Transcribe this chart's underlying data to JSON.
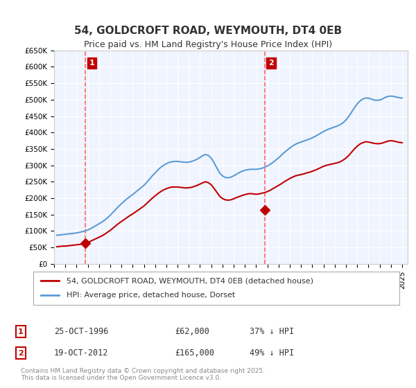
{
  "title": "54, GOLDCROFT ROAD, WEYMOUTH, DT4 0EB",
  "subtitle": "Price paid vs. HM Land Registry's House Price Index (HPI)",
  "legend_line1": "54, GOLDCROFT ROAD, WEYMOUTH, DT4 0EB (detached house)",
  "legend_line2": "HPI: Average price, detached house, Dorset",
  "purchase1_date": "25-OCT-1996",
  "purchase1_price": 62000,
  "purchase1_label": "37% ↓ HPI",
  "purchase2_date": "19-OCT-2012",
  "purchase2_price": 165000,
  "purchase2_label": "49% ↓ HPI",
  "footer": "Contains HM Land Registry data © Crown copyright and database right 2025.\nThis data is licensed under the Open Government Licence v3.0.",
  "hpi_color": "#5b9bd5",
  "price_color": "#c00000",
  "marker_color": "#c00000",
  "vline_color": "#ff6666",
  "background_color": "#f0f4ff",
  "grid_color": "#ffffff",
  "ylim": [
    0,
    650000
  ],
  "yticks": [
    0,
    50000,
    100000,
    150000,
    200000,
    250000,
    300000,
    350000,
    400000,
    450000,
    500000,
    550000,
    600000,
    650000
  ],
  "xlim_start": 1994.0,
  "xlim_end": 2025.5,
  "xticks": [
    1994,
    1995,
    1996,
    1997,
    1998,
    1999,
    2000,
    2001,
    2002,
    2003,
    2004,
    2005,
    2006,
    2007,
    2008,
    2009,
    2010,
    2011,
    2012,
    2013,
    2014,
    2015,
    2016,
    2017,
    2018,
    2019,
    2020,
    2021,
    2022,
    2023,
    2024,
    2025
  ],
  "purchase1_x": 1996.81,
  "purchase2_x": 2012.8,
  "hpi_x": [
    1994.25,
    1994.5,
    1994.75,
    1995.0,
    1995.25,
    1995.5,
    1995.75,
    1996.0,
    1996.25,
    1996.5,
    1996.75,
    1997.0,
    1997.25,
    1997.5,
    1997.75,
    1998.0,
    1998.25,
    1998.5,
    1998.75,
    1999.0,
    1999.25,
    1999.5,
    1999.75,
    2000.0,
    2000.25,
    2000.5,
    2000.75,
    2001.0,
    2001.25,
    2001.5,
    2001.75,
    2002.0,
    2002.25,
    2002.5,
    2002.75,
    2003.0,
    2003.25,
    2003.5,
    2003.75,
    2004.0,
    2004.25,
    2004.5,
    2004.75,
    2005.0,
    2005.25,
    2005.5,
    2005.75,
    2006.0,
    2006.25,
    2006.5,
    2006.75,
    2007.0,
    2007.25,
    2007.5,
    2007.75,
    2008.0,
    2008.25,
    2008.5,
    2008.75,
    2009.0,
    2009.25,
    2009.5,
    2009.75,
    2010.0,
    2010.25,
    2010.5,
    2010.75,
    2011.0,
    2011.25,
    2011.5,
    2011.75,
    2012.0,
    2012.25,
    2012.5,
    2012.75,
    2013.0,
    2013.25,
    2013.5,
    2013.75,
    2014.0,
    2014.25,
    2014.5,
    2014.75,
    2015.0,
    2015.25,
    2015.5,
    2015.75,
    2016.0,
    2016.25,
    2016.5,
    2016.75,
    2017.0,
    2017.25,
    2017.5,
    2017.75,
    2018.0,
    2018.25,
    2018.5,
    2018.75,
    2019.0,
    2019.25,
    2019.5,
    2019.75,
    2020.0,
    2020.25,
    2020.5,
    2020.75,
    2021.0,
    2021.25,
    2021.5,
    2021.75,
    2022.0,
    2022.25,
    2022.5,
    2022.75,
    2023.0,
    2023.25,
    2023.5,
    2023.75,
    2024.0,
    2024.25,
    2024.5,
    2024.75,
    2025.0
  ],
  "hpi_y": [
    87000,
    88000,
    89000,
    90000,
    91000,
    92000,
    93000,
    94000,
    96000,
    98000,
    100000,
    103000,
    107000,
    112000,
    117000,
    122000,
    127000,
    133000,
    140000,
    148000,
    157000,
    166000,
    175000,
    183000,
    191000,
    198000,
    205000,
    211000,
    218000,
    225000,
    232000,
    239000,
    248000,
    258000,
    268000,
    277000,
    286000,
    294000,
    300000,
    305000,
    309000,
    311000,
    312000,
    312000,
    311000,
    310000,
    309000,
    310000,
    312000,
    315000,
    319000,
    324000,
    330000,
    333000,
    330000,
    322000,
    308000,
    292000,
    277000,
    268000,
    263000,
    262000,
    264000,
    268000,
    273000,
    278000,
    282000,
    285000,
    287000,
    288000,
    288000,
    288000,
    289000,
    291000,
    294000,
    298000,
    303000,
    309000,
    316000,
    323000,
    331000,
    339000,
    346000,
    353000,
    359000,
    364000,
    368000,
    371000,
    374000,
    377000,
    380000,
    384000,
    388000,
    393000,
    398000,
    403000,
    407000,
    411000,
    414000,
    417000,
    420000,
    424000,
    430000,
    438000,
    449000,
    462000,
    475000,
    487000,
    496000,
    502000,
    505000,
    505000,
    502000,
    499000,
    498000,
    499000,
    502000,
    507000,
    510000,
    511000,
    510000,
    508000,
    506000,
    505000
  ],
  "price_x": [
    1994.25,
    1994.5,
    1994.75,
    1995.0,
    1995.25,
    1995.5,
    1995.75,
    1996.0,
    1996.25,
    1996.5,
    1996.75,
    1997.0,
    1997.25,
    1997.5,
    1997.75,
    1998.0,
    1998.25,
    1998.5,
    1998.75,
    1999.0,
    1999.25,
    1999.5,
    1999.75,
    2000.0,
    2000.25,
    2000.5,
    2000.75,
    2001.0,
    2001.25,
    2001.5,
    2001.75,
    2002.0,
    2002.25,
    2002.5,
    2002.75,
    2003.0,
    2003.25,
    2003.5,
    2003.75,
    2004.0,
    2004.25,
    2004.5,
    2004.75,
    2005.0,
    2005.25,
    2005.5,
    2005.75,
    2006.0,
    2006.25,
    2006.5,
    2006.75,
    2007.0,
    2007.25,
    2007.5,
    2007.75,
    2008.0,
    2008.25,
    2008.5,
    2008.75,
    2009.0,
    2009.25,
    2009.5,
    2009.75,
    2010.0,
    2010.25,
    2010.5,
    2010.75,
    2011.0,
    2011.25,
    2011.5,
    2011.75,
    2012.0,
    2012.25,
    2012.5,
    2012.75,
    2013.0,
    2013.25,
    2013.5,
    2013.75,
    2014.0,
    2014.25,
    2014.5,
    2014.75,
    2015.0,
    2015.25,
    2015.5,
    2015.75,
    2016.0,
    2016.25,
    2016.5,
    2016.75,
    2017.0,
    2017.25,
    2017.5,
    2017.75,
    2018.0,
    2018.25,
    2018.5,
    2018.75,
    2019.0,
    2019.25,
    2019.5,
    2019.75,
    2020.0,
    2020.25,
    2020.5,
    2020.75,
    2021.0,
    2021.25,
    2021.5,
    2021.75,
    2022.0,
    2022.25,
    2022.5,
    2022.75,
    2023.0,
    2023.25,
    2023.5,
    2023.75,
    2024.0,
    2024.25,
    2024.5,
    2024.75,
    2025.0
  ],
  "price_y": [
    52000,
    53000,
    54000,
    54000,
    55000,
    56000,
    57000,
    58000,
    59000,
    60000,
    62000,
    65000,
    69000,
    73000,
    77000,
    81000,
    85000,
    90000,
    96000,
    102000,
    109000,
    116000,
    123000,
    129000,
    135000,
    141000,
    147000,
    152000,
    158000,
    164000,
    170000,
    176000,
    184000,
    192000,
    200000,
    207000,
    214000,
    220000,
    225000,
    229000,
    232000,
    234000,
    234000,
    234000,
    233000,
    232000,
    231000,
    232000,
    233000,
    236000,
    239000,
    243000,
    247000,
    250000,
    247000,
    241000,
    230000,
    218000,
    206000,
    199000,
    195000,
    194000,
    195000,
    198000,
    202000,
    205000,
    208000,
    211000,
    213000,
    214000,
    213000,
    212000,
    213000,
    215000,
    217000,
    220000,
    224000,
    229000,
    234000,
    239000,
    244000,
    250000,
    255000,
    260000,
    264000,
    268000,
    270000,
    272000,
    274000,
    277000,
    279000,
    282000,
    285000,
    289000,
    293000,
    297000,
    300000,
    302000,
    304000,
    306000,
    308000,
    311000,
    316000,
    322000,
    330000,
    340000,
    350000,
    358000,
    365000,
    369000,
    372000,
    371000,
    369000,
    367000,
    366000,
    366000,
    368000,
    371000,
    374000,
    375000,
    374000,
    372000,
    370000,
    369000
  ]
}
